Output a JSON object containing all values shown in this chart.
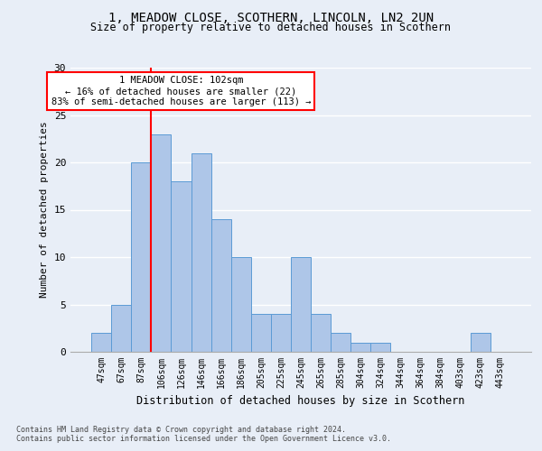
{
  "title1": "1, MEADOW CLOSE, SCOTHERN, LINCOLN, LN2 2UN",
  "title2": "Size of property relative to detached houses in Scothern",
  "xlabel": "Distribution of detached houses by size in Scothern",
  "ylabel": "Number of detached properties",
  "footnote1": "Contains HM Land Registry data © Crown copyright and database right 2024.",
  "footnote2": "Contains public sector information licensed under the Open Government Licence v3.0.",
  "annotation_line1": "1 MEADOW CLOSE: 102sqm",
  "annotation_line2": "← 16% of detached houses are smaller (22)",
  "annotation_line3": "83% of semi-detached houses are larger (113) →",
  "bar_labels": [
    "47sqm",
    "67sqm",
    "87sqm",
    "106sqm",
    "126sqm",
    "146sqm",
    "166sqm",
    "186sqm",
    "205sqm",
    "225sqm",
    "245sqm",
    "265sqm",
    "285sqm",
    "304sqm",
    "324sqm",
    "344sqm",
    "364sqm",
    "384sqm",
    "403sqm",
    "423sqm",
    "443sqm"
  ],
  "bar_values": [
    2,
    5,
    20,
    23,
    18,
    21,
    14,
    10,
    4,
    4,
    10,
    4,
    2,
    1,
    1,
    0,
    0,
    0,
    0,
    2,
    0
  ],
  "bar_color": "#aec6e8",
  "bar_edgecolor": "#5b9bd5",
  "vline_index": 3,
  "vline_color": "red",
  "ylim": [
    0,
    30
  ],
  "yticks": [
    0,
    5,
    10,
    15,
    20,
    25,
    30
  ],
  "bg_color": "#e8eef7",
  "grid_color": "white",
  "annotation_box_color": "white",
  "annotation_box_edgecolor": "red",
  "title1_fontsize": 10,
  "title2_fontsize": 8.5,
  "ylabel_fontsize": 8,
  "xlabel_fontsize": 8.5,
  "tick_fontsize": 7,
  "footnote_fontsize": 6,
  "annotation_fontsize": 7.5
}
